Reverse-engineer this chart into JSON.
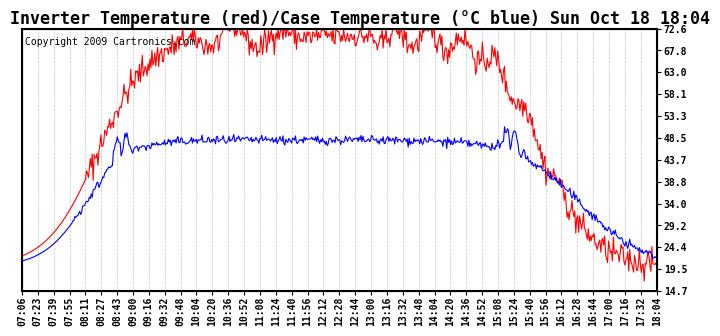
{
  "title": "Inverter Temperature (red)/Case Temperature (°C blue) Sun Oct 18 18:04",
  "copyright": "Copyright 2009 Cartronics.com",
  "yticks": [
    14.7,
    19.5,
    24.4,
    29.2,
    34.0,
    38.8,
    43.7,
    48.5,
    53.3,
    58.1,
    63.0,
    67.8,
    72.6
  ],
  "ymin": 14.7,
  "ymax": 72.6,
  "xtick_labels": [
    "07:06",
    "07:23",
    "07:39",
    "07:55",
    "08:11",
    "08:27",
    "08:43",
    "09:00",
    "09:16",
    "09:32",
    "09:48",
    "10:04",
    "10:20",
    "10:36",
    "10:52",
    "11:08",
    "11:24",
    "11:40",
    "11:56",
    "12:12",
    "12:28",
    "12:44",
    "13:00",
    "13:16",
    "13:32",
    "13:48",
    "14:04",
    "14:20",
    "14:36",
    "14:52",
    "15:08",
    "15:24",
    "15:40",
    "15:56",
    "16:12",
    "16:28",
    "16:44",
    "17:00",
    "17:16",
    "17:32",
    "18:04"
  ],
  "bg_color": "#ffffff",
  "plot_bg_color": "#ffffff",
  "grid_color": "#aaaaaa",
  "red_color": "#ff0000",
  "blue_color": "#0000ff",
  "title_fontsize": 12,
  "tick_fontsize": 7,
  "copyright_fontsize": 7
}
